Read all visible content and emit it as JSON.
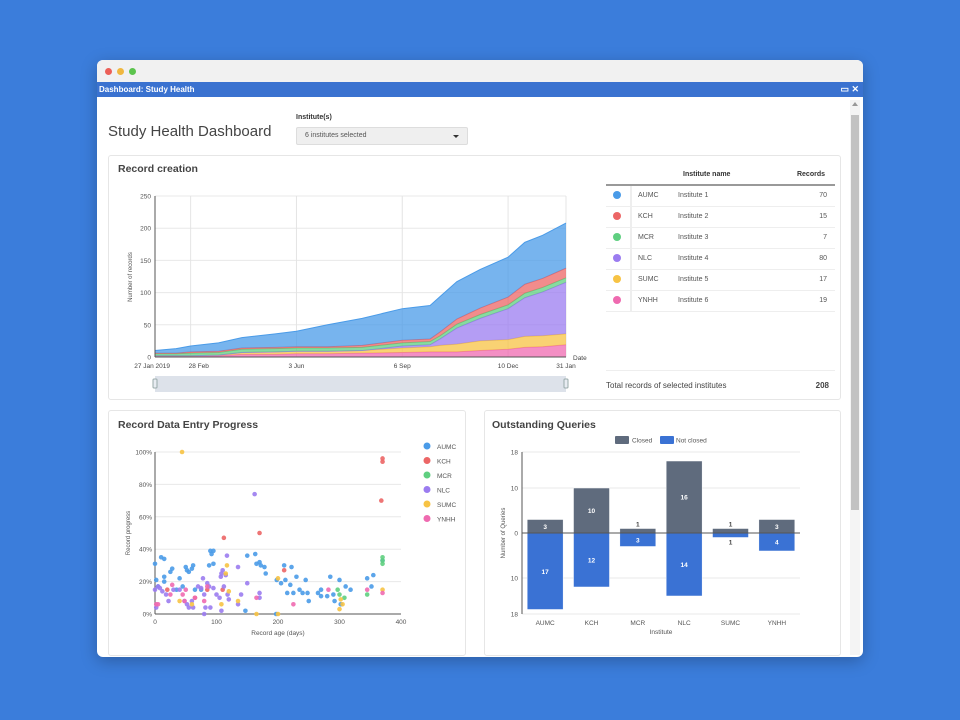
{
  "window": {
    "title": "Dashboard: Study Health",
    "controls": {
      "maximize": "▭",
      "close": "✕"
    }
  },
  "header": {
    "title": "Study Health Dashboard",
    "institute_label": "Institute(s)",
    "institute_select": "6 institutes selected"
  },
  "colors": {
    "AUMC": "#4a9be8",
    "KCH": "#ec6666",
    "MCR": "#5fcf80",
    "NLC": "#9b7cf0",
    "SUMC": "#f7c344",
    "YNHH": "#ef6ab0",
    "closed": "#5f6b7d",
    "not_closed": "#3a72d4"
  },
  "record_creation": {
    "title": "Record creation",
    "table": {
      "headers": [
        "",
        "Institute name",
        "Records"
      ],
      "rows": [
        {
          "code": "AUMC",
          "name": "Institute 1",
          "records": "70"
        },
        {
          "code": "KCH",
          "name": "Institute 2",
          "records": "15"
        },
        {
          "code": "MCR",
          "name": "Institute 3",
          "records": "7"
        },
        {
          "code": "NLC",
          "name": "Institute 4",
          "records": "80"
        },
        {
          "code": "SUMC",
          "name": "Institute 5",
          "records": "17"
        },
        {
          "code": "YNHH",
          "name": "Institute 6",
          "records": "19"
        }
      ],
      "total_label": "Total records of selected institutes",
      "total_value": "208"
    }
  },
  "chart_data": [
    {
      "type": "area",
      "stacked": true,
      "ylabel": "Number of records",
      "xlabel": "Date",
      "ylim": [
        0,
        250
      ],
      "yticks": [
        0,
        50,
        100,
        150,
        200,
        250
      ],
      "xticks": [
        {
          "date": "2019-01-27",
          "label": "27 Jan 2019"
        },
        {
          "date": "2019-02-28",
          "label": "28 Feb"
        },
        {
          "date": "2019-06-03",
          "label": "3 Jun"
        },
        {
          "date": "2019-09-06",
          "label": "6 Sep"
        },
        {
          "date": "2019-12-10",
          "label": "10 Dec"
        },
        {
          "date": "2020-01-31",
          "label": "31 Jan"
        }
      ],
      "grid": true,
      "x": [
        "2019-01-27",
        "2019-02-15",
        "2019-02-28",
        "2019-03-25",
        "2019-04-15",
        "2019-05-15",
        "2019-06-03",
        "2019-07-01",
        "2019-08-01",
        "2019-09-06",
        "2019-10-01",
        "2019-10-10",
        "2019-10-25",
        "2019-11-15",
        "2019-12-10",
        "2019-12-25",
        "2020-01-10",
        "2020-01-31"
      ],
      "series": [
        {
          "name": "YNHH",
          "values": [
            2,
            2,
            2,
            2,
            4,
            4,
            5,
            5,
            6,
            7,
            8,
            8,
            8,
            10,
            12,
            15,
            16,
            19
          ]
        },
        {
          "name": "SUMC",
          "values": [
            0,
            0,
            0,
            1,
            3,
            4,
            4,
            4,
            4,
            7,
            8,
            10,
            12,
            15,
            15,
            17,
            17,
            17
          ]
        },
        {
          "name": "NLC",
          "values": [
            0,
            0,
            0,
            0,
            0,
            0,
            0,
            0,
            0,
            3,
            3,
            10,
            25,
            35,
            48,
            60,
            68,
            80
          ]
        },
        {
          "name": "MCR",
          "values": [
            3,
            3,
            4,
            4,
            5,
            5,
            5,
            5,
            5,
            5,
            5,
            5,
            6,
            6,
            6,
            7,
            7,
            7
          ]
        },
        {
          "name": "KCH",
          "values": [
            1,
            1,
            2,
            2,
            2,
            2,
            2,
            2,
            3,
            4,
            4,
            6,
            8,
            10,
            12,
            14,
            14,
            15
          ]
        },
        {
          "name": "AUMC",
          "values": [
            4,
            7,
            9,
            13,
            16,
            21,
            24,
            34,
            42,
            49,
            52,
            55,
            58,
            60,
            62,
            65,
            67,
            70
          ]
        }
      ]
    },
    {
      "type": "scatter",
      "title": "Record Data Entry Progress",
      "xlabel": "Record age (days)",
      "ylabel": "Record progress",
      "xlim": [
        0,
        400
      ],
      "xticks": [
        0,
        100,
        200,
        300,
        400
      ],
      "ylim": [
        0,
        100
      ],
      "yticks": [
        "0%",
        "20%",
        "40%",
        "60%",
        "80%",
        "100%"
      ],
      "legend": "right",
      "grid": true,
      "series": [
        {
          "name": "AUMC",
          "points": [
            [
              0,
              31
            ],
            [
              2,
              21
            ],
            [
              5,
              17
            ],
            [
              10,
              35
            ],
            [
              15,
              34
            ],
            [
              15,
              23
            ],
            [
              15,
              20
            ],
            [
              25,
              26
            ],
            [
              28,
              28
            ],
            [
              40,
              22
            ],
            [
              45,
              17
            ],
            [
              50,
              29
            ],
            [
              52,
              27
            ],
            [
              55,
              26
            ],
            [
              60,
              28
            ],
            [
              62,
              30
            ],
            [
              65,
              15
            ],
            [
              90,
              39
            ],
            [
              92,
              37
            ],
            [
              95,
              39
            ],
            [
              88,
              30
            ],
            [
              95,
              31
            ],
            [
              150,
              36
            ],
            [
              163,
              37
            ],
            [
              165,
              31
            ],
            [
              170,
              32
            ],
            [
              172,
              30
            ],
            [
              178,
              29
            ],
            [
              180,
              25
            ],
            [
              198,
              21
            ],
            [
              205,
              19
            ],
            [
              210,
              30
            ],
            [
              212,
              21
            ],
            [
              215,
              13
            ],
            [
              220,
              18
            ],
            [
              222,
              29
            ],
            [
              225,
              13
            ],
            [
              230,
              23
            ],
            [
              235,
              15
            ],
            [
              240,
              13
            ],
            [
              245,
              21
            ],
            [
              248,
              13
            ],
            [
              250,
              8
            ],
            [
              265,
              13
            ],
            [
              270,
              15
            ],
            [
              270,
              11
            ],
            [
              280,
              11
            ],
            [
              285,
              23
            ],
            [
              290,
              12
            ],
            [
              292,
              8
            ],
            [
              300,
              21
            ],
            [
              302,
              6
            ],
            [
              310,
              17
            ],
            [
              318,
              15
            ],
            [
              345,
              22
            ],
            [
              352,
              17
            ],
            [
              355,
              24
            ],
            [
              370,
              33
            ],
            [
              147,
              2
            ],
            [
              197,
              0
            ],
            [
              75,
              15
            ],
            [
              35,
              15
            ]
          ]
        },
        {
          "name": "KCH",
          "points": [
            [
              112,
              47
            ],
            [
              170,
              50
            ],
            [
              210,
              27
            ],
            [
              370,
              96
            ],
            [
              370,
              94
            ],
            [
              368,
              70
            ],
            [
              85,
              15
            ],
            [
              65,
              10
            ],
            [
              20,
              15
            ],
            [
              110,
              15
            ]
          ]
        },
        {
          "name": "MCR",
          "points": [
            [
              297,
              15
            ],
            [
              300,
              12
            ],
            [
              308,
              10
            ],
            [
              345,
              12
            ],
            [
              370,
              35
            ],
            [
              370,
              33
            ],
            [
              370,
              31
            ]
          ]
        },
        {
          "name": "NLC",
          "points": [
            [
              0,
              15
            ],
            [
              2,
              4
            ],
            [
              5,
              17
            ],
            [
              8,
              16
            ],
            [
              12,
              14
            ],
            [
              18,
              12
            ],
            [
              22,
              8
            ],
            [
              30,
              15
            ],
            [
              40,
              15
            ],
            [
              48,
              8
            ],
            [
              52,
              6
            ],
            [
              55,
              4
            ],
            [
              60,
              8
            ],
            [
              62,
              4
            ],
            [
              70,
              17
            ],
            [
              75,
              16
            ],
            [
              78,
              22
            ],
            [
              80,
              12
            ],
            [
              80,
              0
            ],
            [
              82,
              4
            ],
            [
              85,
              19
            ],
            [
              88,
              17
            ],
            [
              90,
              4
            ],
            [
              95,
              16
            ],
            [
              100,
              12
            ],
            [
              105,
              10
            ],
            [
              107,
              23
            ],
            [
              108,
              25
            ],
            [
              108,
              2
            ],
            [
              110,
              27
            ],
            [
              112,
              17
            ],
            [
              115,
              24
            ],
            [
              117,
              36
            ],
            [
              120,
              9
            ],
            [
              135,
              6
            ],
            [
              135,
              29
            ],
            [
              140,
              12
            ],
            [
              150,
              19
            ],
            [
              162,
              74
            ],
            [
              170,
              13
            ],
            [
              170,
              10
            ],
            [
              118,
              12
            ]
          ]
        },
        {
          "name": "SUMC",
          "points": [
            [
              44,
              100
            ],
            [
              40,
              8
            ],
            [
              60,
              6
            ],
            [
              108,
              6
            ],
            [
              115,
              25
            ],
            [
              117,
              30
            ],
            [
              120,
              14
            ],
            [
              135,
              8
            ],
            [
              165,
              0
            ],
            [
              200,
              22
            ],
            [
              200,
              0
            ],
            [
              300,
              3
            ],
            [
              302,
              9
            ],
            [
              305,
              6
            ],
            [
              370,
              15
            ]
          ]
        },
        {
          "name": "YNHH",
          "points": [
            [
              2,
              6
            ],
            [
              5,
              6
            ],
            [
              28,
              18
            ],
            [
              25,
              12
            ],
            [
              45,
              12
            ],
            [
              48,
              8
            ],
            [
              65,
              10
            ],
            [
              80,
              8
            ],
            [
              85,
              17
            ],
            [
              165,
              10
            ],
            [
              225,
              6
            ],
            [
              282,
              15
            ],
            [
              345,
              15
            ],
            [
              370,
              13
            ],
            [
              50,
              15
            ]
          ]
        }
      ]
    },
    {
      "type": "bar",
      "title": "Outstanding Queries",
      "diverging": true,
      "xlabel": "Institute",
      "ylabel": "Number of Queries",
      "categories": [
        "AUMC",
        "KCH",
        "MCR",
        "NLC",
        "SUMC",
        "YNHH"
      ],
      "ylim": [
        -18,
        18
      ],
      "yticks": [
        "18",
        "10",
        "0",
        "10",
        "18"
      ],
      "legend": "top",
      "series": [
        {
          "name": "Closed",
          "values": [
            3,
            10,
            1,
            16,
            1,
            3
          ]
        },
        {
          "name": "Not closed",
          "values": [
            17,
            12,
            3,
            14,
            1,
            4
          ]
        }
      ]
    }
  ]
}
